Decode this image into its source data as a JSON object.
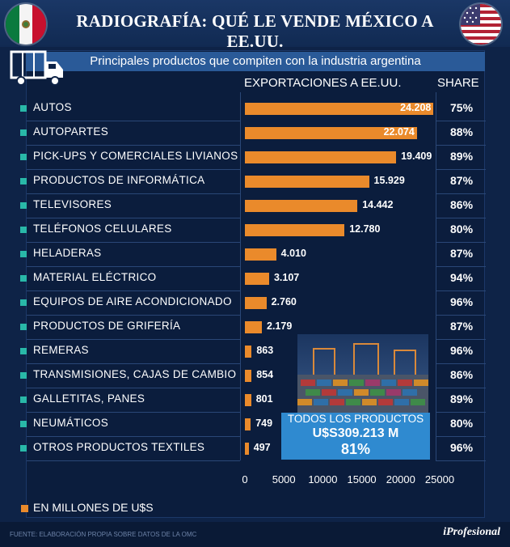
{
  "header": {
    "title": "RADIOGRAFÍA: QUÉ LE VENDE MÉXICO A EE.UU."
  },
  "subtitle": "Principales productos que compiten con la industria argentina",
  "col_export": "EXPORTACIONES A EE.UU.",
  "col_share": "SHARE",
  "chart_data": {
    "type": "bar",
    "orientation": "horizontal",
    "title": "RADIOGRAFÍA: QUÉ LE VENDE MÉXICO A EE.UU.",
    "subtitle": "Principales productos que compiten con la industria argentina",
    "unit": "EN MILLONES DE U$S",
    "categories": [
      "AUTOS",
      "AUTOPARTES",
      "PICK-UPS Y COMERCIALES LIVIANOS",
      "PRODUCTOS DE INFORMÁTICA",
      "TELEVISORES",
      "TELÉFONOS CELULARES",
      "HELADERAS",
      "MATERIAL ELÉCTRICO",
      "EQUIPOS DE AIRE ACONDICIONADO",
      "PRODUCTOS DE GRIFERÍA",
      "REMERAS",
      "TRANSMISIONES, CAJAS DE CAMBIO",
      "GALLETITAS, PANES",
      "NEUMÁTICOS",
      "OTROS PRODUCTOS TEXTILES"
    ],
    "values": [
      24208,
      22074,
      19409,
      15929,
      14442,
      12780,
      4010,
      3107,
      2760,
      2179,
      863,
      854,
      801,
      749,
      497
    ],
    "value_labels": [
      "24.208",
      "22.074",
      "19.409",
      "15.929",
      "14.442",
      "12.780",
      "4.010",
      "3.107",
      "2.760",
      "2.179",
      "863",
      "854",
      "801",
      "749",
      "497"
    ],
    "share": [
      "75%",
      "88%",
      "89%",
      "87%",
      "86%",
      "80%",
      "87%",
      "94%",
      "96%",
      "87%",
      "96%",
      "86%",
      "89%",
      "80%",
      "96%"
    ],
    "xlim": [
      0,
      25000
    ],
    "xticks": [
      0,
      5000,
      10000,
      15000,
      20000,
      25000
    ],
    "xtick_labels": [
      "0",
      "5000",
      "10000",
      "15000",
      "20000",
      "25000"
    ],
    "bar_color": "#ea8a2b",
    "grid": false
  },
  "total": {
    "label": "TODOS LOS PRODUCTOS",
    "amount": "U$S309.213 M",
    "share": "81%"
  },
  "legend": "EN MILLONES DE U$S",
  "footer": {
    "source": "FUENTE: ELABORACIÓN PROPIA SOBRE DATOS DE LA OMC",
    "brand": "iProfesional"
  }
}
